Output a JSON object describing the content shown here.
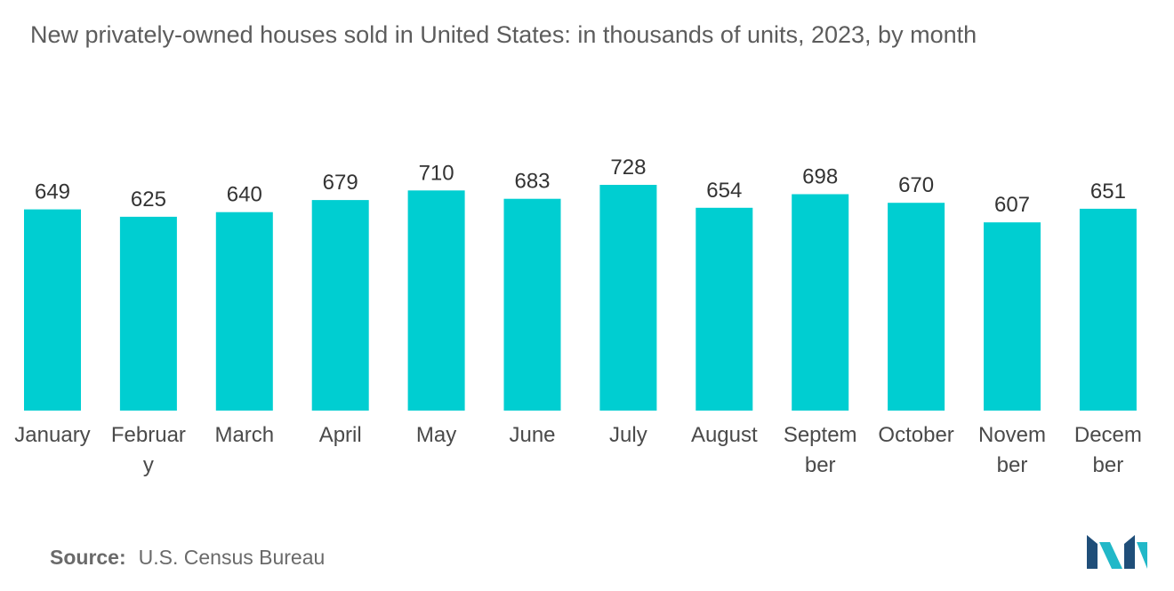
{
  "chart_data": {
    "type": "bar",
    "title": "New privately-owned houses sold in United States: in thousands of units, 2023, by month",
    "categories": [
      "January",
      "February",
      "March",
      "April",
      "May",
      "June",
      "July",
      "August",
      "September",
      "October",
      "November",
      "December"
    ],
    "category_display": [
      [
        "January"
      ],
      [
        "Februar",
        "y"
      ],
      [
        "March"
      ],
      [
        "April"
      ],
      [
        "May"
      ],
      [
        "June"
      ],
      [
        "July"
      ],
      [
        "August"
      ],
      [
        "Septem",
        "ber"
      ],
      [
        "October"
      ],
      [
        "Novem",
        "ber"
      ],
      [
        "Decem",
        "ber"
      ]
    ],
    "values": [
      649,
      625,
      640,
      679,
      710,
      683,
      728,
      654,
      698,
      670,
      607,
      651
    ],
    "xlabel": "",
    "ylabel": "",
    "ylim": [
      0,
      728
    ],
    "grid": false,
    "legend": "none",
    "bar_color": "#00CED1"
  },
  "source": {
    "label": "Source:",
    "text": "U.S. Census Bureau"
  },
  "colors": {
    "bar": "#00CED1",
    "logo_dark": "#1F4E79",
    "logo_teal": "#22B8C8"
  }
}
